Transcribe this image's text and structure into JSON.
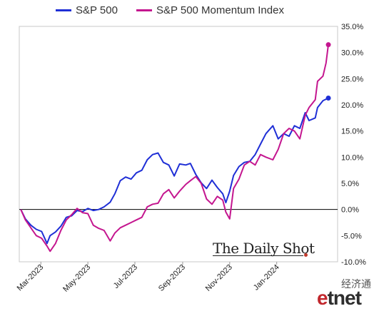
{
  "chart_data": {
    "type": "line",
    "title": "",
    "xlabel": "",
    "ylabel": "",
    "x_ticks": [
      "Mar-2023",
      "May-2023",
      "Jul-2023",
      "Sep-2023",
      "Nov-2023",
      "Jan-2024"
    ],
    "x_tick_dates": [
      "2023-03-01",
      "2023-05-01",
      "2023-07-01",
      "2023-09-01",
      "2023-11-01",
      "2024-01-01"
    ],
    "x_range": [
      "2023-02-01",
      "2024-03-20"
    ],
    "y_ticks": [
      "-10.0%",
      "-5.0%",
      "0.0%",
      "5.0%",
      "10.0%",
      "15.0%",
      "20.0%",
      "25.0%",
      "30.0%",
      "35.0%"
    ],
    "y_tick_values": [
      -10,
      -5,
      0,
      5,
      10,
      15,
      20,
      25,
      30,
      35
    ],
    "ylim": [
      -10,
      35
    ],
    "y_axis_side": "right",
    "grid": false,
    "legend_position": "top",
    "series": [
      {
        "name": "S&P 500",
        "color": "#1f2fd6",
        "points": [
          [
            "2023-02-03",
            0.0
          ],
          [
            "2023-02-09",
            -1.8
          ],
          [
            "2023-02-16",
            -3.0
          ],
          [
            "2023-02-23",
            -3.8
          ],
          [
            "2023-03-02",
            -4.2
          ],
          [
            "2023-03-09",
            -6.5
          ],
          [
            "2023-03-13",
            -5.0
          ],
          [
            "2023-03-20",
            -4.3
          ],
          [
            "2023-03-27",
            -3.2
          ],
          [
            "2023-04-03",
            -1.5
          ],
          [
            "2023-04-10",
            -1.2
          ],
          [
            "2023-04-17",
            -0.2
          ],
          [
            "2023-04-24",
            -0.4
          ],
          [
            "2023-05-01",
            0.2
          ],
          [
            "2023-05-08",
            -0.2
          ],
          [
            "2023-05-15",
            0.0
          ],
          [
            "2023-05-22",
            0.5
          ],
          [
            "2023-05-30",
            1.4
          ],
          [
            "2023-06-05",
            3.0
          ],
          [
            "2023-06-12",
            5.5
          ],
          [
            "2023-06-19",
            6.2
          ],
          [
            "2023-06-26",
            5.8
          ],
          [
            "2023-07-03",
            7.0
          ],
          [
            "2023-07-10",
            7.5
          ],
          [
            "2023-07-17",
            9.5
          ],
          [
            "2023-07-24",
            10.5
          ],
          [
            "2023-07-31",
            10.8
          ],
          [
            "2023-08-07",
            9.0
          ],
          [
            "2023-08-14",
            8.5
          ],
          [
            "2023-08-21",
            6.4
          ],
          [
            "2023-08-28",
            8.7
          ],
          [
            "2023-09-05",
            8.5
          ],
          [
            "2023-09-11",
            8.8
          ],
          [
            "2023-09-18",
            6.7
          ],
          [
            "2023-09-25",
            5.1
          ],
          [
            "2023-10-02",
            4.0
          ],
          [
            "2023-10-09",
            5.6
          ],
          [
            "2023-10-16",
            4.2
          ],
          [
            "2023-10-23",
            3.0
          ],
          [
            "2023-10-27",
            1.3
          ],
          [
            "2023-11-01",
            3.5
          ],
          [
            "2023-11-06",
            6.5
          ],
          [
            "2023-11-13",
            8.2
          ],
          [
            "2023-11-20",
            9.0
          ],
          [
            "2023-11-27",
            9.2
          ],
          [
            "2023-12-04",
            10.5
          ],
          [
            "2023-12-11",
            12.5
          ],
          [
            "2023-12-18",
            14.5
          ],
          [
            "2023-12-27",
            16.0
          ],
          [
            "2024-01-03",
            13.5
          ],
          [
            "2024-01-10",
            14.5
          ],
          [
            "2024-01-17",
            14.0
          ],
          [
            "2024-01-24",
            16.0
          ],
          [
            "2024-01-31",
            15.5
          ],
          [
            "2024-02-07",
            18.5
          ],
          [
            "2024-02-12",
            17.0
          ],
          [
            "2024-02-20",
            17.5
          ],
          [
            "2024-02-23",
            19.5
          ],
          [
            "2024-03-01",
            20.8
          ],
          [
            "2024-03-08",
            21.3
          ]
        ]
      },
      {
        "name": "S&P 500 Momentum Index",
        "color": "#c4168f",
        "points": [
          [
            "2023-02-03",
            0.0
          ],
          [
            "2023-02-09",
            -2.0
          ],
          [
            "2023-02-16",
            -3.5
          ],
          [
            "2023-02-23",
            -5.0
          ],
          [
            "2023-03-02",
            -5.5
          ],
          [
            "2023-03-09",
            -7.0
          ],
          [
            "2023-03-13",
            -8.0
          ],
          [
            "2023-03-20",
            -6.5
          ],
          [
            "2023-03-27",
            -4.0
          ],
          [
            "2023-04-03",
            -2.0
          ],
          [
            "2023-04-10",
            -1.0
          ],
          [
            "2023-04-17",
            0.2
          ],
          [
            "2023-04-24",
            -0.6
          ],
          [
            "2023-05-01",
            -0.8
          ],
          [
            "2023-05-08",
            -3.0
          ],
          [
            "2023-05-15",
            -3.6
          ],
          [
            "2023-05-22",
            -4.0
          ],
          [
            "2023-05-30",
            -6.0
          ],
          [
            "2023-06-05",
            -4.5
          ],
          [
            "2023-06-12",
            -3.5
          ],
          [
            "2023-06-19",
            -3.0
          ],
          [
            "2023-06-26",
            -2.5
          ],
          [
            "2023-07-03",
            -2.0
          ],
          [
            "2023-07-10",
            -1.5
          ],
          [
            "2023-07-17",
            0.5
          ],
          [
            "2023-07-24",
            1.0
          ],
          [
            "2023-07-31",
            1.2
          ],
          [
            "2023-08-07",
            3.0
          ],
          [
            "2023-08-14",
            3.8
          ],
          [
            "2023-08-21",
            2.2
          ],
          [
            "2023-08-28",
            3.5
          ],
          [
            "2023-09-05",
            4.8
          ],
          [
            "2023-09-11",
            5.5
          ],
          [
            "2023-09-18",
            6.3
          ],
          [
            "2023-09-25",
            5.0
          ],
          [
            "2023-10-02",
            2.0
          ],
          [
            "2023-10-09",
            1.0
          ],
          [
            "2023-10-16",
            2.5
          ],
          [
            "2023-10-23",
            1.8
          ],
          [
            "2023-10-27",
            -0.5
          ],
          [
            "2023-11-01",
            -1.8
          ],
          [
            "2023-11-06",
            4.0
          ],
          [
            "2023-11-13",
            5.8
          ],
          [
            "2023-11-20",
            8.5
          ],
          [
            "2023-11-27",
            9.2
          ],
          [
            "2023-12-04",
            8.5
          ],
          [
            "2023-12-11",
            10.5
          ],
          [
            "2023-12-18",
            10.0
          ],
          [
            "2023-12-27",
            9.5
          ],
          [
            "2024-01-03",
            11.5
          ],
          [
            "2024-01-10",
            14.5
          ],
          [
            "2024-01-17",
            15.5
          ],
          [
            "2024-01-24",
            15.0
          ],
          [
            "2024-01-31",
            13.5
          ],
          [
            "2024-02-07",
            18.0
          ],
          [
            "2024-02-12",
            19.5
          ],
          [
            "2024-02-20",
            21.0
          ],
          [
            "2024-02-23",
            24.5
          ],
          [
            "2024-03-01",
            25.5
          ],
          [
            "2024-03-05",
            28.0
          ],
          [
            "2024-03-08",
            31.5
          ]
        ]
      }
    ]
  },
  "watermark": {
    "text": "The Daily Shot"
  },
  "corner_logo": {
    "chinese": "经济通",
    "e": "e",
    "rest": "tnet"
  }
}
